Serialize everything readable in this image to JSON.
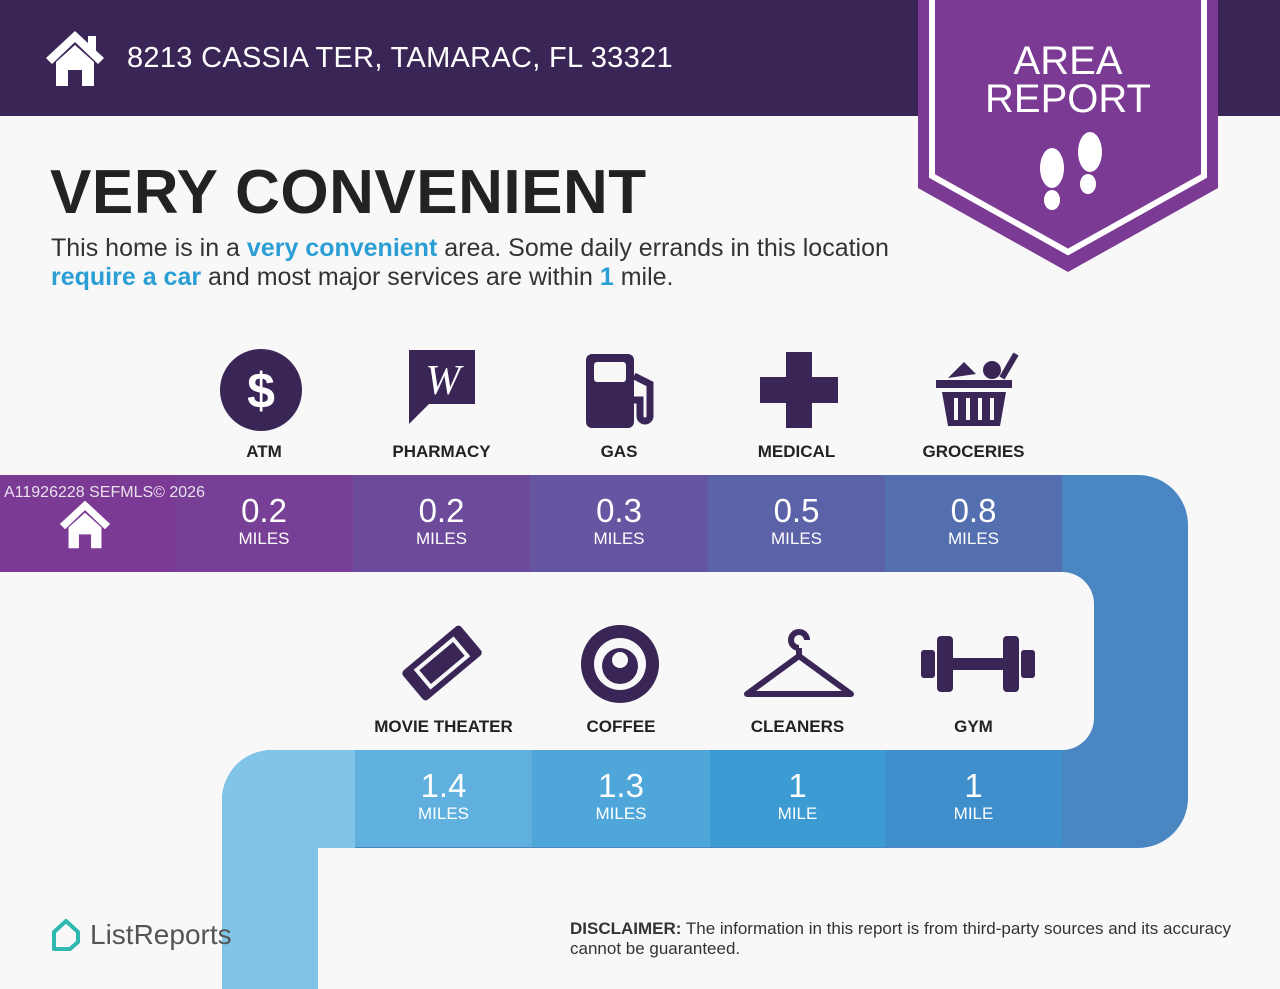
{
  "header": {
    "address": "8213 CASSIA TER, TAMARAC, FL 33321",
    "home_icon": "house-icon"
  },
  "badge": {
    "line1": "AREA",
    "line2": "REPORT",
    "icon": "footprints-icon"
  },
  "title": "VERY CONVENIENT",
  "description": {
    "p1": "This home is in a ",
    "h1": "very convenient",
    "p2": " area. Some daily errands in this location ",
    "h2": "require a car",
    "p3": " and most major services are within ",
    "h3": "1",
    "p4": " mile."
  },
  "watermark": "A11926228  SEFMLS© 2026",
  "row1": [
    {
      "label": "ATM",
      "value": "0.2",
      "unit": "MILES",
      "icon": "dollar-icon",
      "color": "#773f95"
    },
    {
      "label": "PHARMACY",
      "value": "0.2",
      "unit": "MILES",
      "icon": "walgreens-icon",
      "color": "#6e4a9a"
    },
    {
      "label": "GAS",
      "value": "0.3",
      "unit": "MILES",
      "icon": "gas-pump-icon",
      "color": "#6655a0"
    },
    {
      "label": "MEDICAL",
      "value": "0.5",
      "unit": "MILES",
      "icon": "medical-cross-icon",
      "color": "#5c62a8"
    },
    {
      "label": "GROCERIES",
      "value": "0.8",
      "unit": "MILES",
      "icon": "grocery-basket-icon",
      "color": "#536fb0"
    }
  ],
  "row2": [
    {
      "label": "MOVIE THEATER",
      "value": "1.4",
      "unit": "MILES",
      "icon": "ticket-icon",
      "color": "#5fb0de"
    },
    {
      "label": "COFFEE",
      "value": "1.3",
      "unit": "MILES",
      "icon": "starbucks-icon",
      "color": "#4fa6d8"
    },
    {
      "label": "CLEANERS",
      "value": "1",
      "unit": "MILE",
      "icon": "hanger-icon",
      "color": "#3b9bd2"
    },
    {
      "label": "GYM",
      "value": "1",
      "unit": "MILE",
      "icon": "dumbbell-icon",
      "color": "#3f8fcc"
    }
  ],
  "footer": {
    "logo": "ListReports",
    "disclaimer_label": "DISCLAIMER:",
    "disclaimer": " The information in this report is from third-party sources and its accuracy cannot be guaranteed."
  },
  "colors": {
    "header": "#3a2656",
    "badge": "#7b3a93",
    "accent": "#2b9ed4",
    "icon": "#3a2656"
  }
}
